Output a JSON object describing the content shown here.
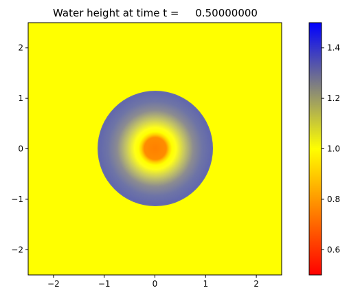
{
  "chart_data": {
    "type": "heatmap",
    "title": "Water height at time t =     0.50000000",
    "xlabel": "",
    "ylabel": "",
    "xlim": [
      -2.5,
      2.5
    ],
    "ylim": [
      -2.5,
      2.5
    ],
    "x_ticks": [
      {
        "value": -2,
        "label": "−2"
      },
      {
        "value": -1,
        "label": "−1"
      },
      {
        "value": 0,
        "label": "0"
      },
      {
        "value": 1,
        "label": "1"
      },
      {
        "value": 2,
        "label": "2"
      }
    ],
    "y_ticks": [
      {
        "value": -2,
        "label": "−2"
      },
      {
        "value": -1,
        "label": "−1"
      },
      {
        "value": 0,
        "label": "0"
      },
      {
        "value": 1,
        "label": "1"
      },
      {
        "value": 2,
        "label": "2"
      }
    ],
    "field": {
      "description_values": "radial water height field centred at origin",
      "background_value": 1.0,
      "outer_radius": 1.13,
      "outer_ring_value": 1.32,
      "inner_radius": 0.22,
      "inner_value": 0.83,
      "ring_at_r0_30_value": 1.0
    },
    "grid": false,
    "colorbar": {
      "range": [
        0.5,
        1.5
      ],
      "ticks": [
        {
          "value": 0.6,
          "label": "0.6"
        },
        {
          "value": 0.8,
          "label": "0.8"
        },
        {
          "value": 1.0,
          "label": "1.0"
        },
        {
          "value": 1.2,
          "label": "1.2"
        },
        {
          "value": 1.4,
          "label": "1.4"
        }
      ],
      "colors": [
        {
          "value": 0.5,
          "color": "#ff0000"
        },
        {
          "value": 1.0,
          "color": "#ffff00"
        },
        {
          "value": 1.25,
          "color": "#808080"
        },
        {
          "value": 1.5,
          "color": "#0000ff"
        }
      ]
    }
  }
}
